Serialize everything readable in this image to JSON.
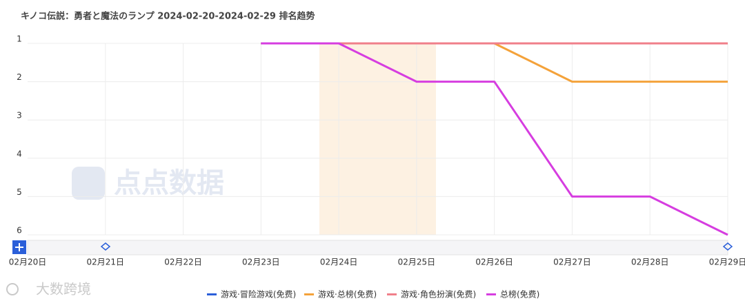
{
  "chart_data": {
    "type": "line",
    "title": "キノコ伝説：勇者と魔法のランプ 2024-02-20-2024-02-29 排名趋势",
    "watermark": "点点数据",
    "footer_watermark": "大数跨境",
    "categories": [
      "02月20日",
      "02月21日",
      "02月22日",
      "02月23日",
      "02月24日",
      "02月25日",
      "02月26日",
      "02月27日",
      "02月28日",
      "02月29日"
    ],
    "series": [
      {
        "name": "游戏·冒险游戏(免费)",
        "color": "#2b5fd9",
        "values": [
          null,
          null,
          null,
          1,
          1,
          1,
          1,
          1,
          1,
          1
        ]
      },
      {
        "name": "游戏·总榜(免费)",
        "color": "#f4a23a",
        "values": [
          null,
          null,
          null,
          1,
          1,
          1,
          1,
          2,
          2,
          2
        ]
      },
      {
        "name": "游戏·角色扮演(免费)",
        "color": "#f07f8a",
        "values": [
          null,
          null,
          null,
          1,
          1,
          1,
          1,
          1,
          1,
          1
        ]
      },
      {
        "name": "总榜(免费)",
        "color": "#d63de0",
        "values": [
          null,
          null,
          null,
          1,
          1,
          2,
          2,
          5,
          5,
          6
        ]
      }
    ],
    "ylim": [
      1,
      6
    ],
    "yticks": [
      1,
      2,
      3,
      4,
      5,
      6
    ],
    "y_inverted": true,
    "grid": true
  }
}
